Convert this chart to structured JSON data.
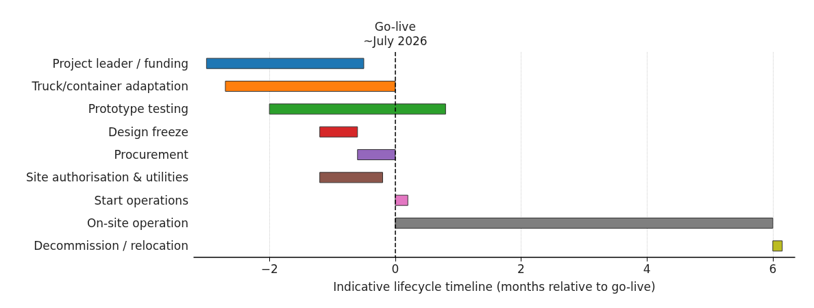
{
  "chart_data": {
    "type": "bar",
    "orientation": "horizontal",
    "xlabel": "Indicative lifecycle timeline (months relative to go-live)",
    "categories": [
      "Project leader / funding",
      "Truck/container adaptation",
      "Prototype testing",
      "Design freeze",
      "Procurement",
      "Site authorisation & utilities",
      "Start operations",
      "On-site operation",
      "Decommission / relocation"
    ],
    "base": [
      -3,
      -2.7,
      -2,
      -1.2,
      -0.6,
      -1.2,
      0,
      0,
      6
    ],
    "values": [
      2.5,
      2.7,
      2.8,
      0.6,
      0.6,
      1,
      0.2,
      6,
      0.15
    ],
    "colors": [
      "#1f77b4",
      "#ff7f0e",
      "#2ca02c",
      "#d62728",
      "#9467bd",
      "#8c564b",
      "#e377c2",
      "#7f7f7f",
      "#bcbd22"
    ],
    "xlim": [
      -3.2,
      6.35
    ],
    "xticks": [
      -2,
      0,
      2,
      4,
      6
    ],
    "grid": "x",
    "ref_lines": [
      {
        "axis": "x",
        "value": 0,
        "label": "Go-live\n~July 2026",
        "color": "#000000",
        "line_style": "dashed"
      }
    ]
  }
}
